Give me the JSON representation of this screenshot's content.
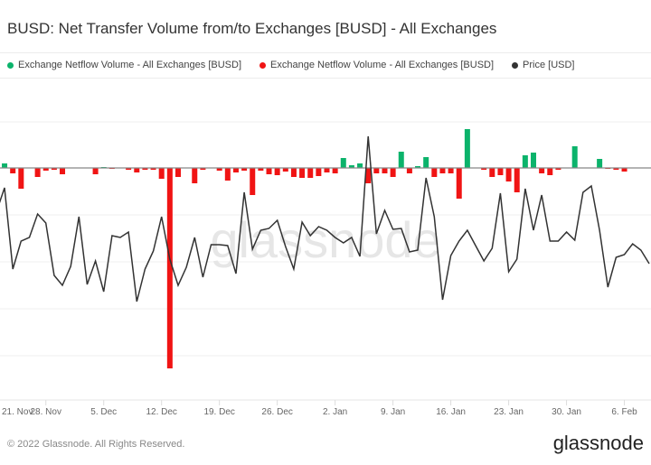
{
  "chart_data": {
    "type": "bar+line",
    "title": "BUSD: Net Transfer Volume from/to Exchanges [BUSD] - All Exchanges",
    "x_start": "2021-11-22",
    "x_step": "1 day",
    "x_tick_labels": [
      "21. Nov",
      "28. Nov",
      "5. Dec",
      "12. Dec",
      "19. Dec",
      "26. Dec",
      "2. Jan",
      "9. Jan",
      "16. Jan",
      "23. Jan",
      "30. Jan",
      "6. Feb"
    ],
    "legend": [
      {
        "label": "Exchange Netflow Volume - All Exchanges [BUSD]",
        "color": "#0bb36b"
      },
      {
        "label": "Exchange Netflow Volume - All Exchanges [BUSD]",
        "color": "#f01414"
      },
      {
        "label": "Price [USD]",
        "color": "#333333"
      }
    ],
    "legend_placement": "top-left",
    "grid": true,
    "watermark": "glassnode",
    "series": [
      {
        "name": "Exchange Netflow Volume [BUSD] (M, relative)",
        "type": "bar",
        "positive_color": "#0bb36b",
        "negative_color": "#f01414",
        "values": [
          0,
          5,
          -6,
          -23,
          0,
          -10,
          -3,
          -2,
          -7,
          0,
          0,
          0,
          -7,
          1,
          -1,
          0,
          -2,
          -5,
          -2,
          -2,
          -12,
          -222,
          -10,
          0,
          -17,
          -2,
          0,
          -3,
          -14,
          -5,
          -3,
          -30,
          -3,
          -7,
          -8,
          -4,
          -10,
          -11,
          -11,
          -9,
          -5,
          -6,
          11,
          3,
          5,
          -17,
          -6,
          -6,
          -10,
          18,
          -6,
          2,
          12,
          -10,
          -6,
          -6,
          -34,
          43,
          0,
          -2,
          -10,
          -8,
          -15,
          -27,
          14,
          17,
          -6,
          -8,
          -2,
          0,
          24,
          0,
          0,
          10,
          -1,
          -2,
          -4,
          0,
          0,
          0
        ]
      },
      {
        "name": "Price [USD]",
        "type": "line",
        "color": "#333333",
        "values": [
          1.0055,
          1.0082,
          0.9992,
          1.0023,
          1.0027,
          1.0053,
          1.0043,
          0.9985,
          0.9974,
          0.9995,
          1.005,
          0.9975,
          1.0001,
          0.9967,
          1.0029,
          1.0027,
          1.0033,
          0.9956,
          0.9992,
          1.0012,
          1.005,
          1.0003,
          0.9974,
          0.9994,
          1.0027,
          0.9983,
          1.0019,
          1.0019,
          1.0018,
          0.9987,
          1.0077,
          1.0014,
          1.0035,
          1.0037,
          1.0046,
          1.0017,
          0.9992,
          1.0044,
          1.0029,
          1.0039,
          1.0035,
          1.0027,
          1.0021,
          1.0027,
          1.0006,
          1.0139,
          1.0031,
          1.0057,
          1.0036,
          1.0037,
          1.0011,
          1.0013,
          1.0093,
          1.005,
          0.9958,
          1.0007,
          1.0023,
          1.0035,
          1.0018,
          1.0001,
          1.0015,
          1.0076,
          0.9989,
          1.0003,
          1.0081,
          1.0035,
          1.0074,
          1.0023,
          1.0023,
          1.0033,
          1.0024,
          1.0077,
          1.0084,
          1.0035,
          0.9972,
          1.0005,
          1.0008,
          1.002,
          1.0013,
          0.9998
        ]
      }
    ]
  },
  "footer": {
    "copyright": "© 2022 Glassnode. All Rights Reserved.",
    "logo": "glassnode"
  }
}
